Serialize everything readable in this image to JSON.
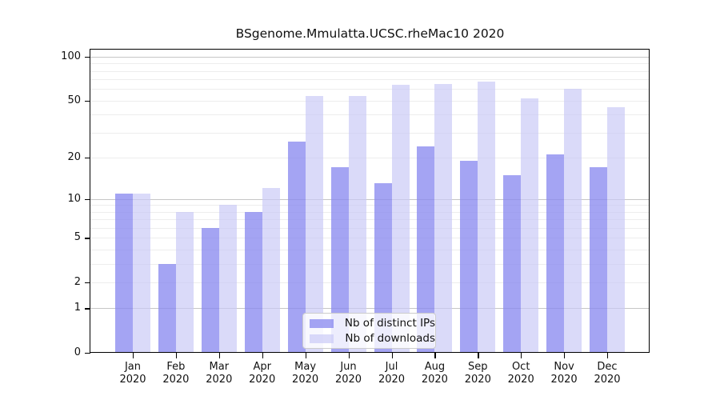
{
  "title": "BSgenome.Mmulatta.UCSC.rheMac10 2020",
  "chart_data": {
    "type": "bar",
    "title": "BSgenome.Mmulatta.UCSC.rheMac10 2020",
    "categories": [
      {
        "month": "Jan",
        "year": "2020"
      },
      {
        "month": "Feb",
        "year": "2020"
      },
      {
        "month": "Mar",
        "year": "2020"
      },
      {
        "month": "Apr",
        "year": "2020"
      },
      {
        "month": "May",
        "year": "2020"
      },
      {
        "month": "Jun",
        "year": "2020"
      },
      {
        "month": "Jul",
        "year": "2020"
      },
      {
        "month": "Aug",
        "year": "2020"
      },
      {
        "month": "Sep",
        "year": "2020"
      },
      {
        "month": "Oct",
        "year": "2020"
      },
      {
        "month": "Nov",
        "year": "2020"
      },
      {
        "month": "Dec",
        "year": "2020"
      }
    ],
    "series": [
      {
        "name": "Nb of distinct IPs",
        "color": "#8888f0",
        "opacity": 0.77,
        "values": [
          11,
          3,
          6,
          8,
          26,
          17,
          13,
          24,
          19,
          15,
          21,
          17
        ]
      },
      {
        "name": "Nb of downloads",
        "color": "#c8c8f6",
        "opacity": 0.68,
        "values": [
          11,
          8,
          9,
          12,
          54,
          54,
          64,
          65,
          68,
          52,
          60,
          45
        ]
      }
    ],
    "yscale": "log1p",
    "ylim": [
      0,
      113
    ],
    "yticks": [
      0,
      1,
      2,
      5,
      10,
      20,
      50,
      100
    ],
    "gridlines": {
      "major": [
        1,
        10,
        100
      ],
      "minor": [
        2,
        3,
        4,
        5,
        6,
        7,
        8,
        9,
        20,
        30,
        40,
        50,
        60,
        70,
        80,
        90
      ]
    },
    "grid": true,
    "legend_position": "lower center",
    "style": {
      "major_grid_color": "#c6c6c6",
      "minor_grid_color": "#ededed",
      "axis_color": "#000000",
      "text_color": "#111111"
    }
  }
}
